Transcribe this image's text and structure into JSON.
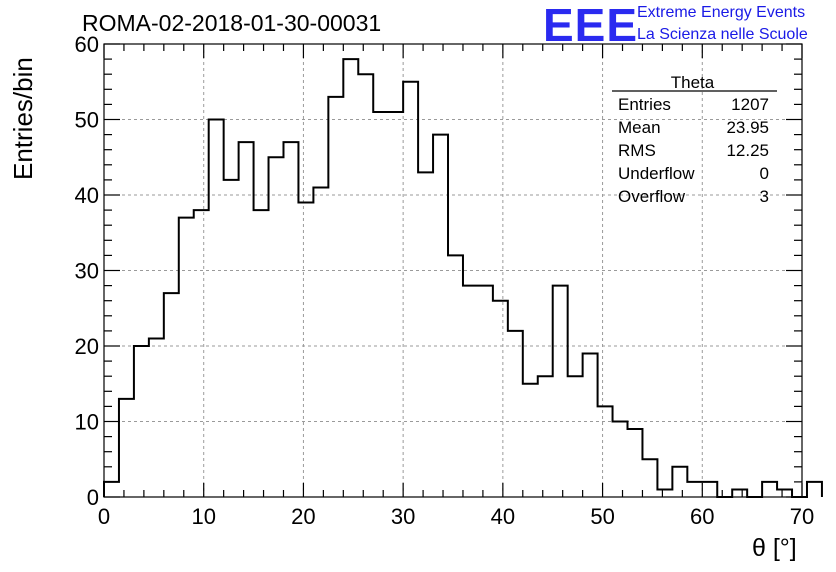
{
  "header": {
    "title": "ROMA-02-2018-01-30-00031",
    "logo_text": "EEE",
    "logo_line1": "Extreme Energy Events",
    "logo_line2": "La Scienza nelle Scuole"
  },
  "stats": {
    "name": "Theta",
    "rows": [
      {
        "label": "Entries",
        "value": "1207"
      },
      {
        "label": "Mean",
        "value": "23.95"
      },
      {
        "label": "RMS",
        "value": "12.25"
      },
      {
        "label": "Underflow",
        "value": "0"
      },
      {
        "label": "Overflow",
        "value": "3"
      }
    ]
  },
  "colors": {
    "logo": "#2a2af0",
    "line": "#000000",
    "grid": "#9a9a9a"
  },
  "chart_data": {
    "type": "bar",
    "style": "step-histogram",
    "xlabel": "θ [°]",
    "ylabel": "Entries/bin",
    "xlim": [
      0,
      70
    ],
    "ylim": [
      0,
      60
    ],
    "bin_width": 1.5,
    "x_ticks": [
      0,
      10,
      20,
      30,
      40,
      50,
      60,
      70
    ],
    "y_ticks": [
      0,
      10,
      20,
      30,
      40,
      50,
      60
    ],
    "grid": true,
    "legend": "top-right",
    "bin_start": 0,
    "values": [
      2,
      13,
      20,
      21,
      27,
      37,
      38,
      50,
      42,
      47,
      38,
      45,
      47,
      39,
      41,
      53,
      58,
      56,
      51,
      51,
      55,
      43,
      48,
      32,
      28,
      28,
      26,
      22,
      15,
      16,
      28,
      16,
      19,
      12,
      10,
      9,
      5,
      1,
      4,
      2,
      2,
      0,
      1,
      0,
      2,
      1,
      0,
      2
    ]
  }
}
